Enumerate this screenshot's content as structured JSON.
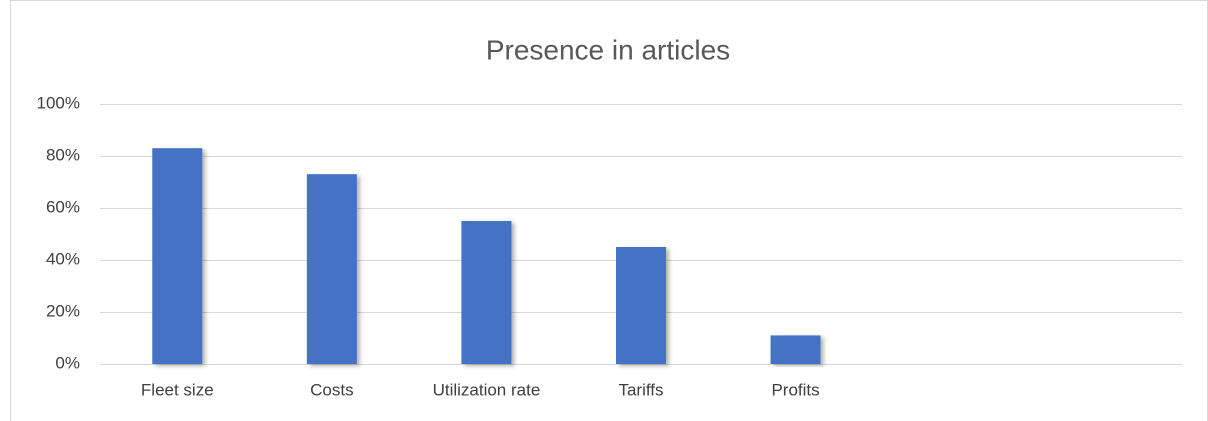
{
  "chart_data": {
    "type": "bar",
    "title": "Presence in articles",
    "categories": [
      "Fleet size",
      "Costs",
      "Utilization rate",
      "Tariffs",
      "Profits",
      null,
      null
    ],
    "values": [
      83,
      73,
      55,
      45,
      11,
      null,
      null
    ],
    "color": "#4472c4",
    "ylim": [
      0,
      100
    ],
    "yticks": [
      {
        "value": 0,
        "label": "0%"
      },
      {
        "value": 20,
        "label": "20%"
      },
      {
        "value": 40,
        "label": "40%"
      },
      {
        "value": 60,
        "label": "60%"
      },
      {
        "value": 80,
        "label": "80%"
      },
      {
        "value": 100,
        "label": "100%"
      }
    ],
    "grid": true
  }
}
